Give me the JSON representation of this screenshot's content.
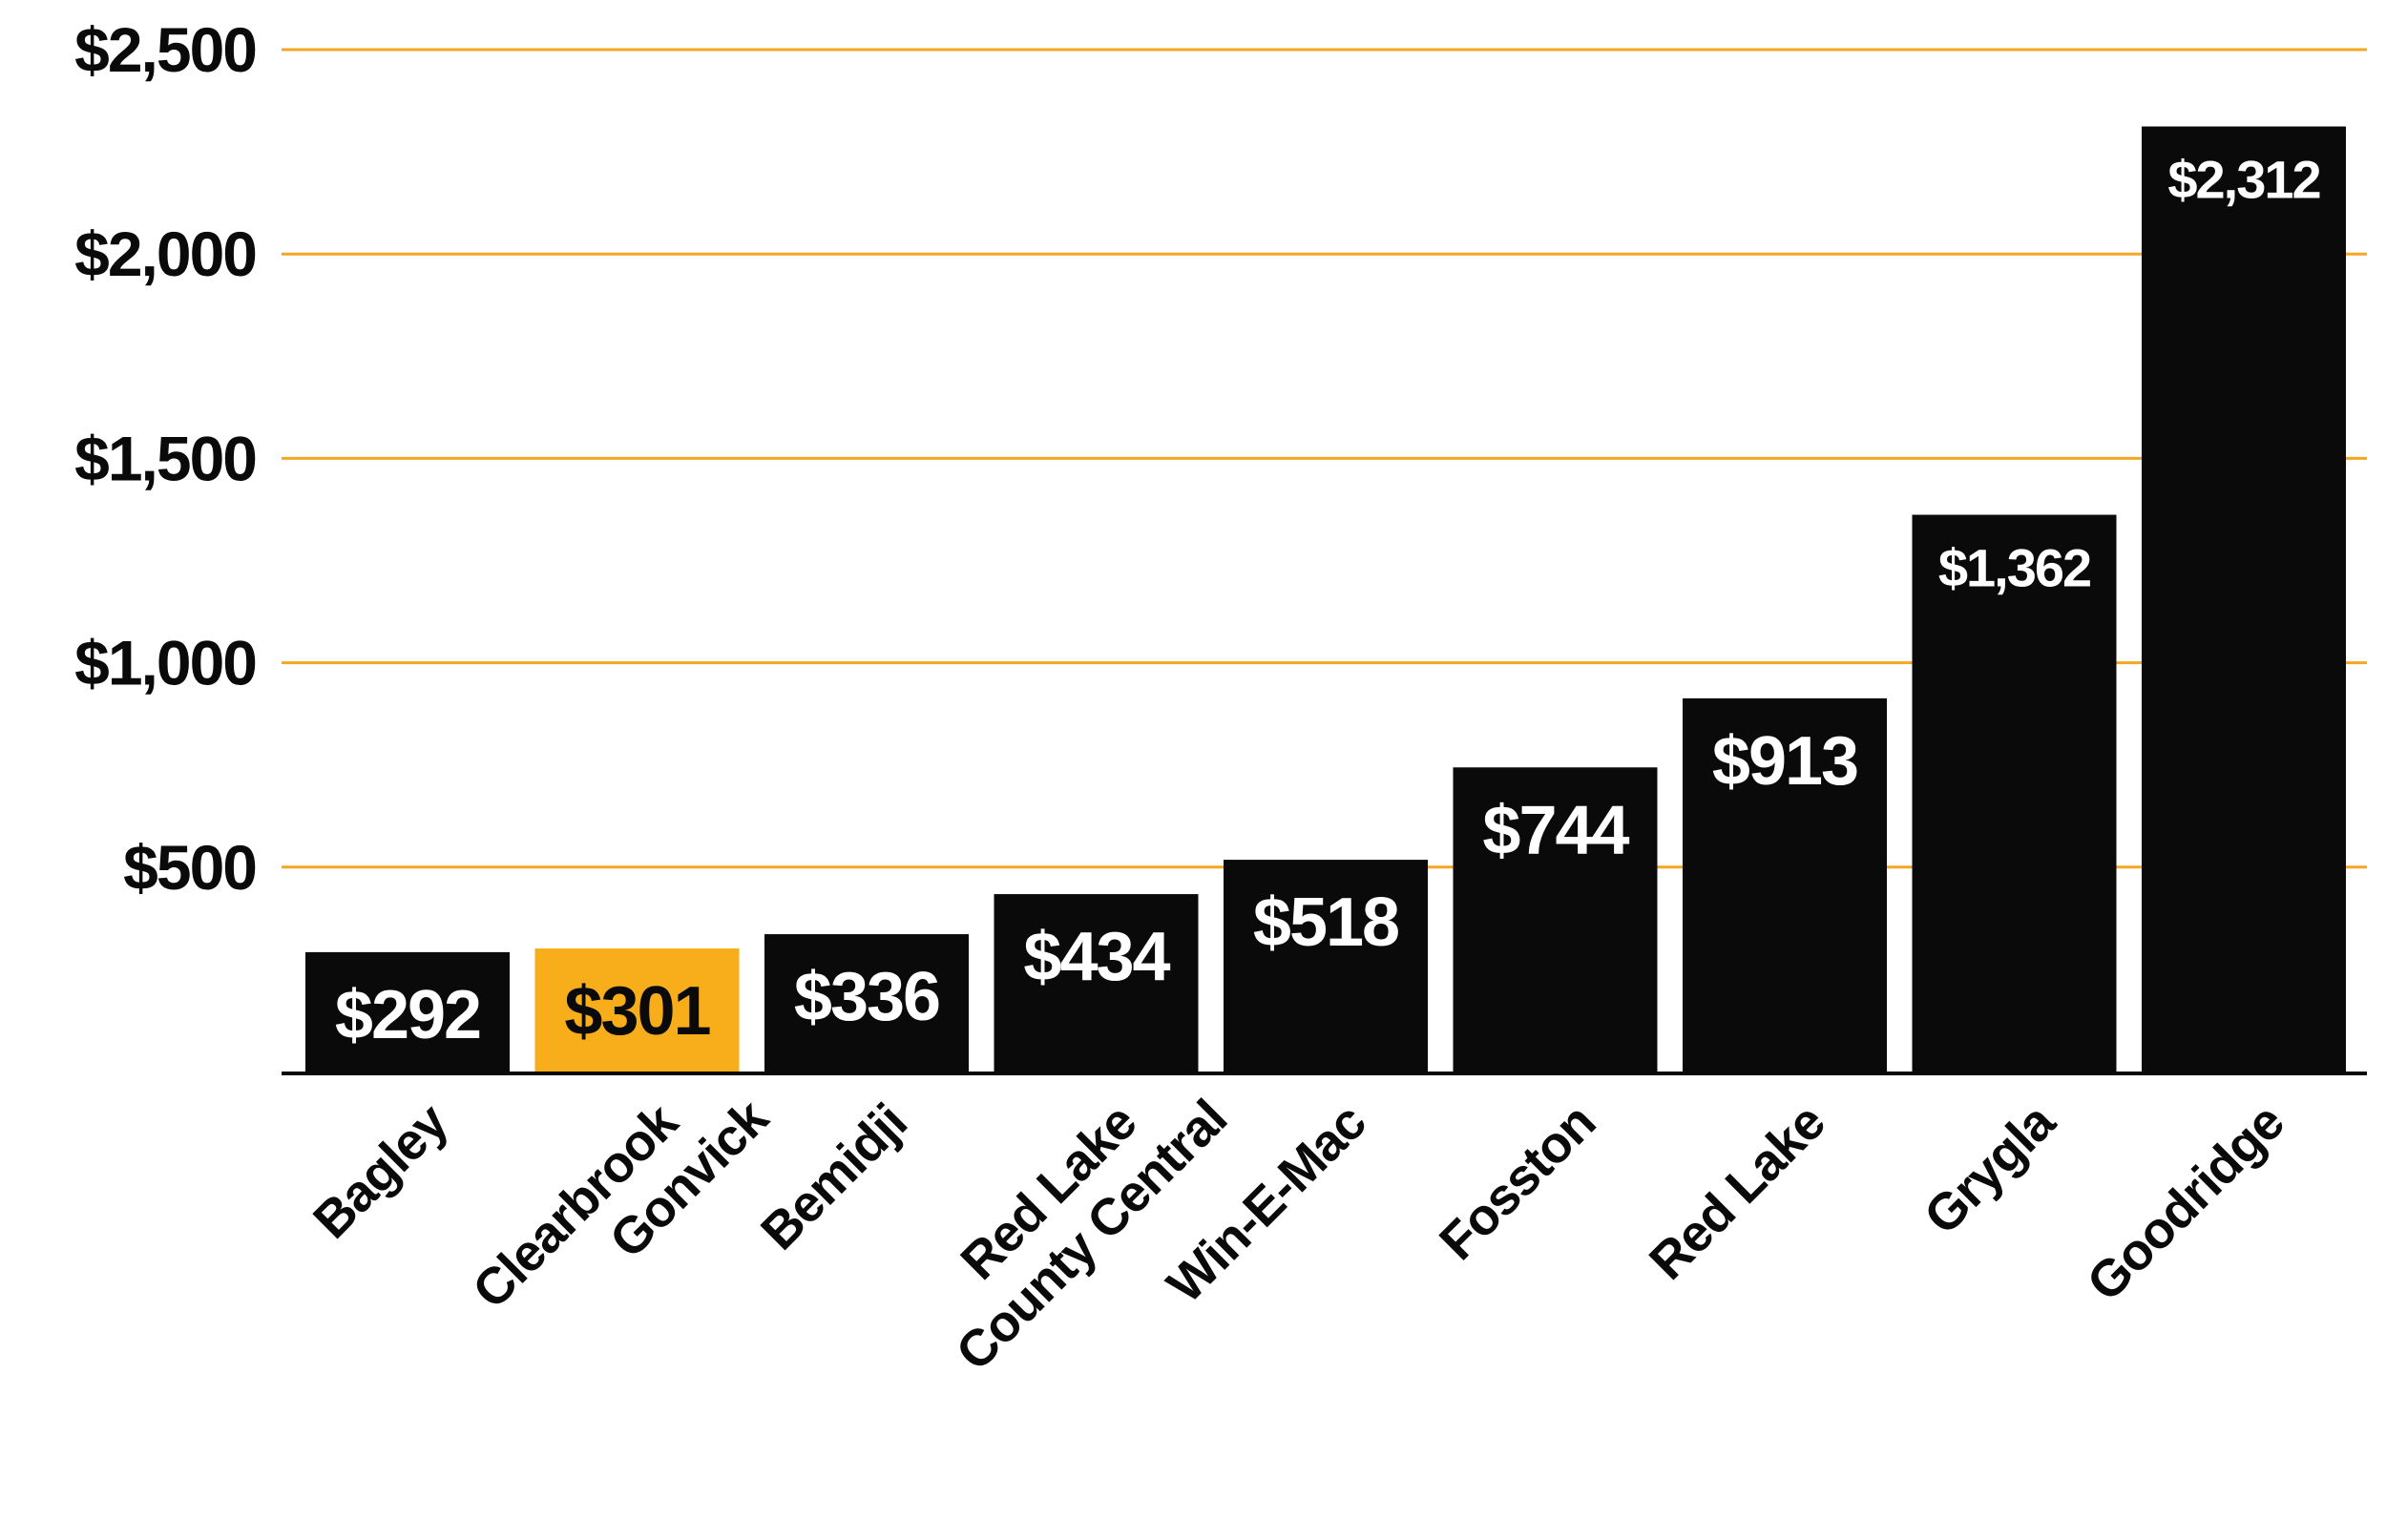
{
  "chart_data": {
    "type": "bar",
    "title": "",
    "xlabel": "",
    "ylabel": "",
    "ylim": [
      0,
      2500
    ],
    "yticks": [
      500,
      1000,
      1500,
      2000,
      2500
    ],
    "ytick_labels": [
      "$500",
      "$1,000",
      "$1,500",
      "$2,000",
      "$2,500"
    ],
    "grid": true,
    "legend": "none",
    "categories": [
      [
        "Bagley"
      ],
      [
        "Clearbrook",
        "Gonvick"
      ],
      [
        "Bemidji"
      ],
      [
        "Red Lake",
        "County Central"
      ],
      [
        "Win-E-Mac"
      ],
      [
        "Fosston"
      ],
      [
        "Red Lake"
      ],
      [
        "Grygla"
      ],
      [
        "Goodridge"
      ]
    ],
    "values": [
      292,
      301,
      336,
      434,
      518,
      744,
      913,
      1362,
      2312
    ],
    "value_labels": [
      "$292",
      "$301",
      "$336",
      "$434",
      "$518",
      "$744",
      "$913",
      "$1,362",
      "$2,312"
    ],
    "highlight_index": 1,
    "colors": {
      "bar": "#0a0a0a",
      "highlight_bar": "#f8ae1a",
      "grid": "#f5a623",
      "axis": "#0a0a0a",
      "label_on_dark": "#ffffff",
      "label_on_highlight": "#0a0a0a"
    }
  }
}
